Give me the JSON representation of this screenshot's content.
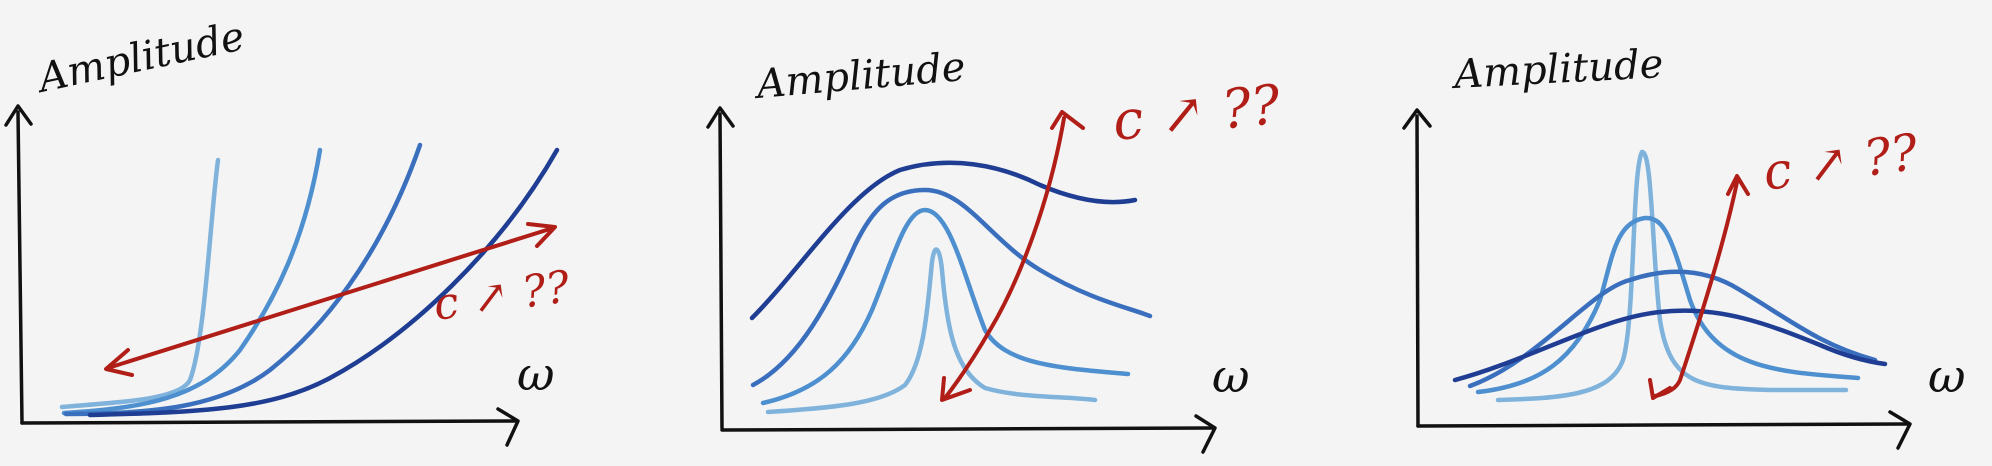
{
  "panels": [
    {
      "ylabel": "Amplitude",
      "xlabel": "ω",
      "annotation": "c ↗ ??"
    },
    {
      "ylabel": "Amplitude",
      "xlabel": "ω",
      "annotation": "c ↗ ??"
    },
    {
      "ylabel": "Amplitude",
      "xlabel": "ω",
      "annotation": "c ↗ ??"
    }
  ],
  "colors": {
    "axis": "#111111",
    "arrow": "#b01e17",
    "curve_light": "#7fb3dc",
    "curve_mid": "#4d8fcf",
    "curve_medium_dark": "#3a6fbe",
    "curve_dark": "#1f3e93"
  }
}
